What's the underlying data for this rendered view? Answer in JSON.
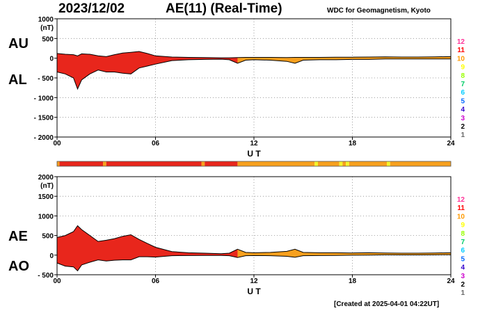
{
  "header": {
    "date": "2023/12/02",
    "title": "AE(11) (Real-Time)",
    "source": "WDC for Geomagnetism, Kyoto"
  },
  "footer": {
    "created": "[Created at 2025-04-01 04:22UT]"
  },
  "colors": {
    "red": "#e8261c",
    "orange": "#f7a01e",
    "yellow": "#f4f42a",
    "levels": [
      "#ff3399",
      "#ff0000",
      "#ff9900",
      "#ffff00",
      "#99ff00",
      "#00cc66",
      "#00ccff",
      "#0066ff",
      "#3300cc",
      "#cc00cc",
      "#000000",
      "#666666",
      "#bbbbbb"
    ]
  },
  "level_scale": [
    "12",
    "11",
    "10",
    "9",
    "8",
    "7",
    "6",
    "5",
    "4",
    "3",
    "2",
    "1"
  ],
  "chart_data": [
    {
      "type": "area",
      "panel": "top",
      "series_labels": [
        "AU",
        "AL"
      ],
      "ylabel": "(nT)",
      "ylim": [
        -2000,
        1000
      ],
      "yticks": [
        "1000",
        "500",
        "0",
        "- 500",
        "- 1000",
        "- 1500",
        "- 2000"
      ],
      "xlim": [
        0,
        24
      ],
      "xticks": [
        "00",
        "06",
        "12",
        "18",
        "24"
      ],
      "xlabel": "U T",
      "grid": "dotted",
      "hours": [
        0,
        0.5,
        1,
        1.25,
        1.5,
        2,
        2.5,
        3,
        3.5,
        4,
        4.5,
        5,
        5.5,
        6,
        7,
        8,
        9,
        10,
        10.5,
        11,
        11.5,
        12,
        13,
        14,
        14.5,
        15,
        16,
        17,
        18,
        19,
        20,
        21,
        22,
        23,
        24
      ],
      "series": [
        {
          "name": "AU",
          "values": [
            120,
            100,
            90,
            60,
            110,
            100,
            60,
            40,
            90,
            130,
            150,
            170,
            120,
            60,
            30,
            20,
            15,
            10,
            10,
            15,
            20,
            20,
            20,
            15,
            20,
            20,
            20,
            25,
            25,
            30,
            35,
            30,
            30,
            35,
            40
          ]
        },
        {
          "name": "AL",
          "values": [
            -350,
            -400,
            -500,
            -780,
            -550,
            -400,
            -300,
            -350,
            -350,
            -380,
            -400,
            -250,
            -200,
            -150,
            -60,
            -40,
            -30,
            -25,
            -40,
            -130,
            -50,
            -40,
            -50,
            -80,
            -130,
            -50,
            -40,
            -40,
            -30,
            -30,
            -20,
            -20,
            -20,
            -20,
            -20
          ]
        }
      ]
    },
    {
      "type": "area",
      "panel": "bottom",
      "series_labels": [
        "AE",
        "AO"
      ],
      "ylabel": "(nT)",
      "ylim": [
        -500,
        2000
      ],
      "yticks": [
        "2000",
        "1500",
        "1000",
        "500",
        "0",
        "- 500"
      ],
      "xlim": [
        0,
        24
      ],
      "xticks": [
        "00",
        "06",
        "12",
        "18",
        "24"
      ],
      "xlabel": "U T",
      "grid": "dotted",
      "hours": [
        0,
        0.5,
        1,
        1.25,
        1.5,
        2,
        2.5,
        3,
        3.5,
        4,
        4.5,
        5,
        5.5,
        6,
        7,
        8,
        9,
        10,
        10.5,
        11,
        11.5,
        12,
        13,
        14,
        14.5,
        15,
        16,
        17,
        18,
        19,
        20,
        21,
        22,
        23,
        24
      ],
      "series": [
        {
          "name": "AE",
          "values": [
            450,
            500,
            600,
            750,
            650,
            500,
            350,
            380,
            420,
            480,
            520,
            400,
            300,
            200,
            90,
            60,
            50,
            35,
            50,
            150,
            70,
            60,
            70,
            95,
            150,
            70,
            60,
            60,
            55,
            60,
            55,
            50,
            50,
            55,
            60
          ]
        },
        {
          "name": "AO",
          "values": [
            -200,
            -280,
            -300,
            -400,
            -250,
            -180,
            -120,
            -150,
            -130,
            -120,
            -120,
            -40,
            -40,
            -50,
            -15,
            -10,
            -7,
            -7,
            -15,
            -60,
            -15,
            -10,
            -15,
            -30,
            -55,
            -15,
            -10,
            -7,
            -2,
            0,
            7,
            5,
            5,
            7,
            10
          ]
        }
      ]
    }
  ],
  "level_bar": {
    "segments": [
      {
        "from": 0,
        "to": 0.15,
        "level": "10"
      },
      {
        "from": 0.15,
        "to": 2.8,
        "level": "11"
      },
      {
        "from": 2.8,
        "to": 3.0,
        "level": "10"
      },
      {
        "from": 3.0,
        "to": 8.8,
        "level": "11"
      },
      {
        "from": 8.8,
        "to": 9.0,
        "level": "10"
      },
      {
        "from": 9.0,
        "to": 11.0,
        "level": "11"
      },
      {
        "from": 11.0,
        "to": 15.7,
        "level": "10"
      },
      {
        "from": 15.7,
        "to": 15.9,
        "level": "9"
      },
      {
        "from": 15.9,
        "to": 17.2,
        "level": "10"
      },
      {
        "from": 17.2,
        "to": 17.4,
        "level": "9"
      },
      {
        "from": 17.4,
        "to": 17.6,
        "level": "10"
      },
      {
        "from": 17.6,
        "to": 17.8,
        "level": "9"
      },
      {
        "from": 17.8,
        "to": 20.1,
        "level": "10"
      },
      {
        "from": 20.1,
        "to": 20.3,
        "level": "9"
      },
      {
        "from": 20.3,
        "to": 24,
        "level": "10"
      }
    ]
  }
}
